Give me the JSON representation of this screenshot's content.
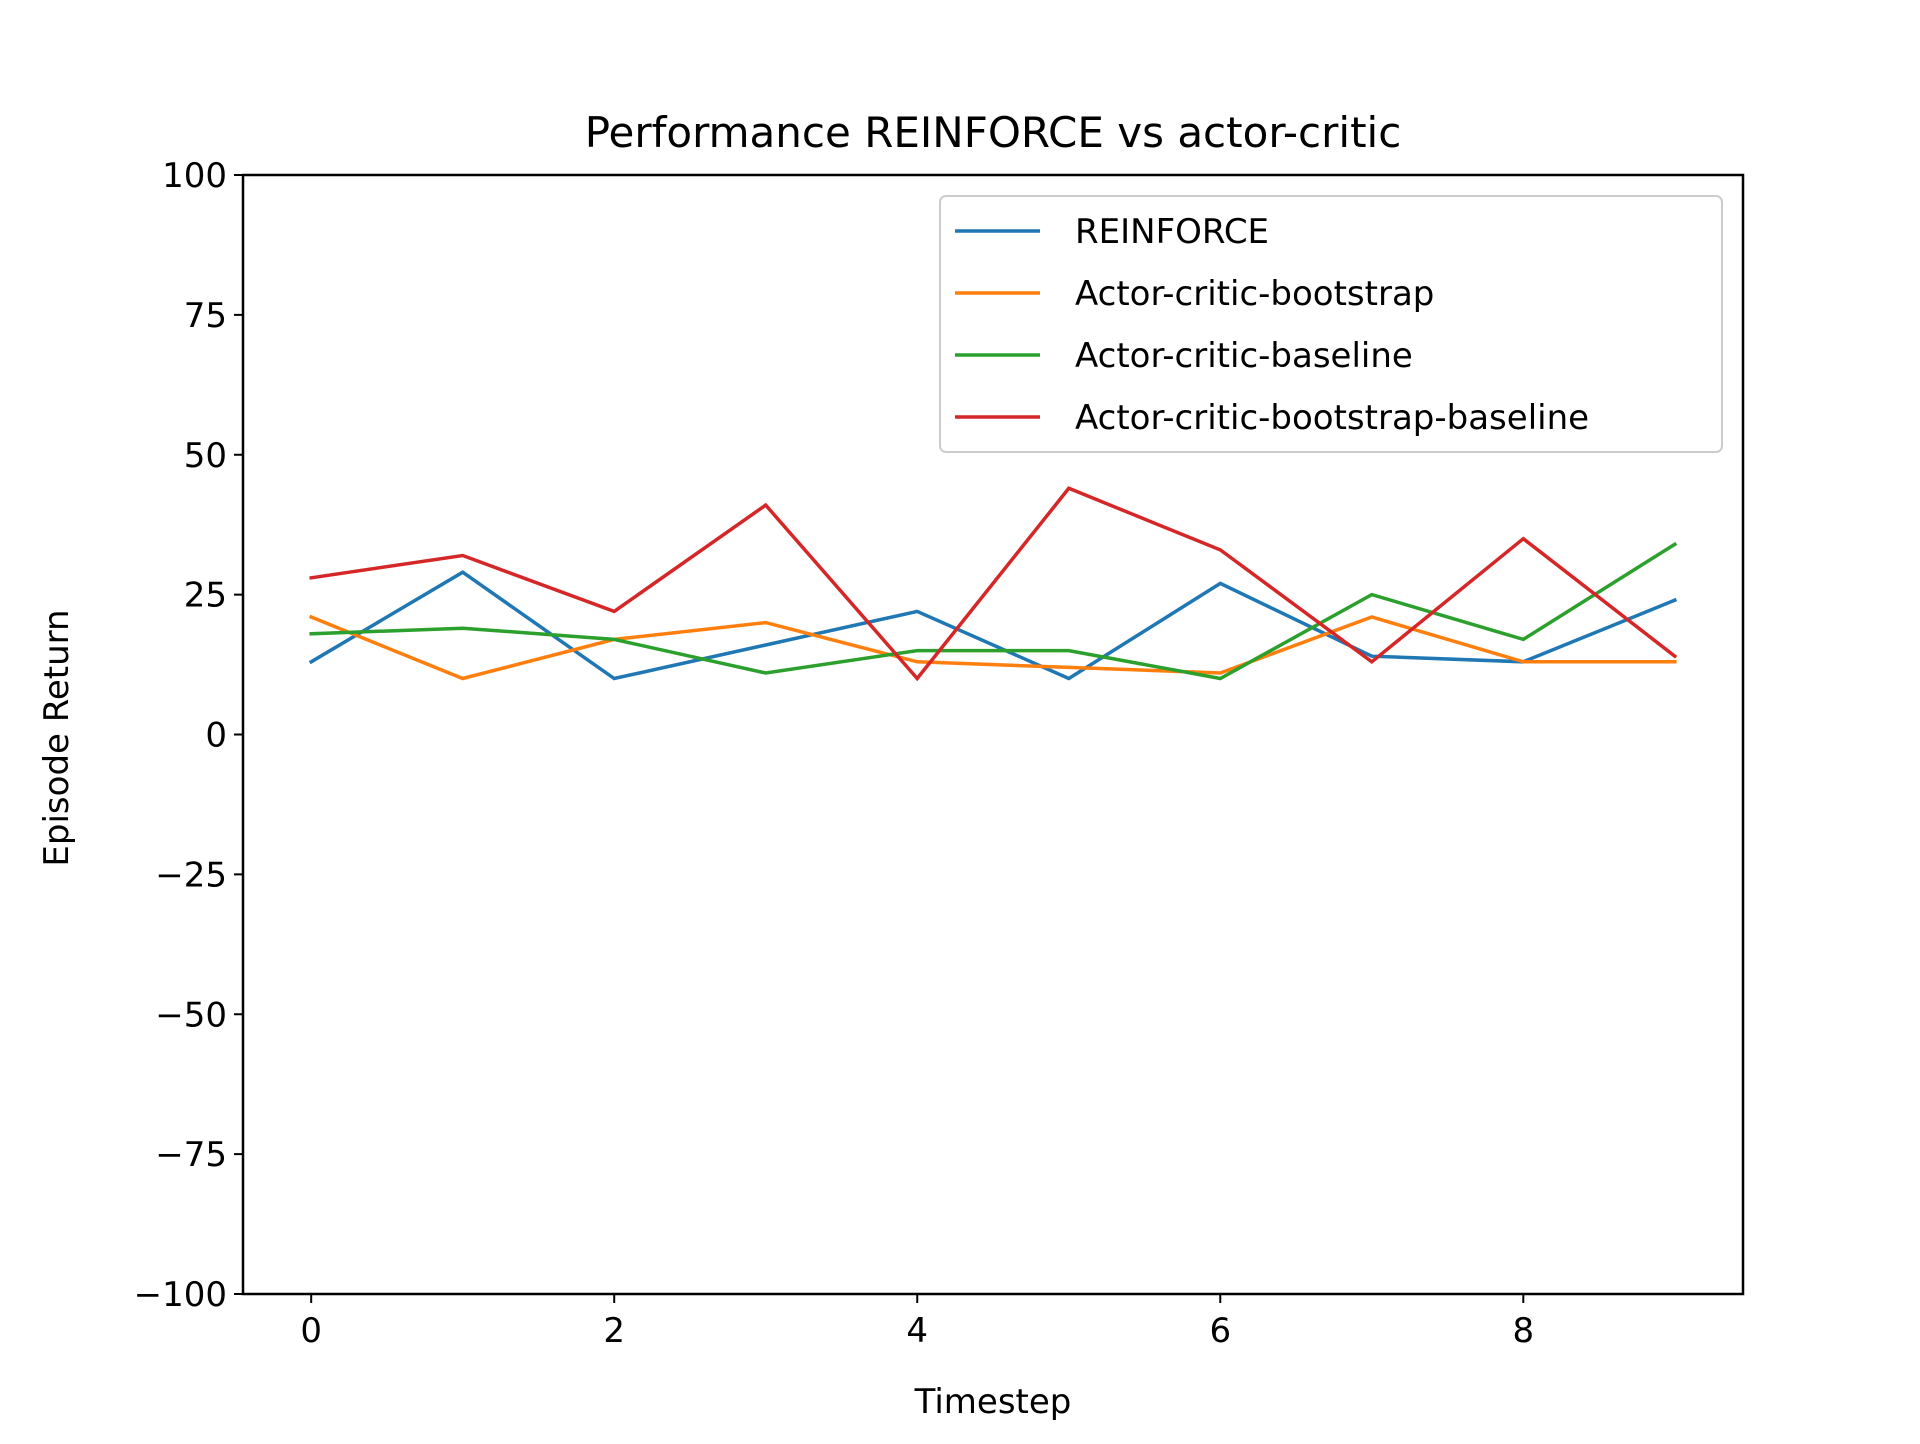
{
  "chart_data": {
    "type": "line",
    "title": "Performance REINFORCE vs actor-critic",
    "xlabel": "Timestep",
    "ylabel": "Episode Return",
    "xlim": [
      -0.45,
      9.45
    ],
    "ylim": [
      -100,
      100
    ],
    "xticks": [
      0,
      2,
      4,
      6,
      8
    ],
    "yticks": [
      -100,
      -75,
      -50,
      -25,
      0,
      25,
      50,
      75,
      100
    ],
    "ytick_labels": [
      "−100",
      "−75",
      "−50",
      "−25",
      "0",
      "25",
      "50",
      "75",
      "100"
    ],
    "grid": false,
    "legend_position": "top-right",
    "x": [
      0,
      1,
      2,
      3,
      4,
      5,
      6,
      7,
      8,
      9
    ],
    "series": [
      {
        "name": "REINFORCE",
        "color": "#1f77b4",
        "values": [
          13,
          29,
          10,
          16,
          22,
          10,
          27,
          14,
          13,
          24
        ]
      },
      {
        "name": "Actor-critic-bootstrap",
        "color": "#ff7f0e",
        "values": [
          21,
          10,
          17,
          20,
          13,
          12,
          11,
          21,
          13,
          13
        ]
      },
      {
        "name": "Actor-critic-baseline",
        "color": "#2ca02c",
        "values": [
          18,
          19,
          17,
          11,
          15,
          15,
          10,
          25,
          17,
          34
        ]
      },
      {
        "name": "Actor-critic-bootstrap-baseline",
        "color": "#d62728",
        "values": [
          28,
          32,
          22,
          41,
          10,
          44,
          33,
          13,
          35,
          14
        ]
      }
    ]
  }
}
